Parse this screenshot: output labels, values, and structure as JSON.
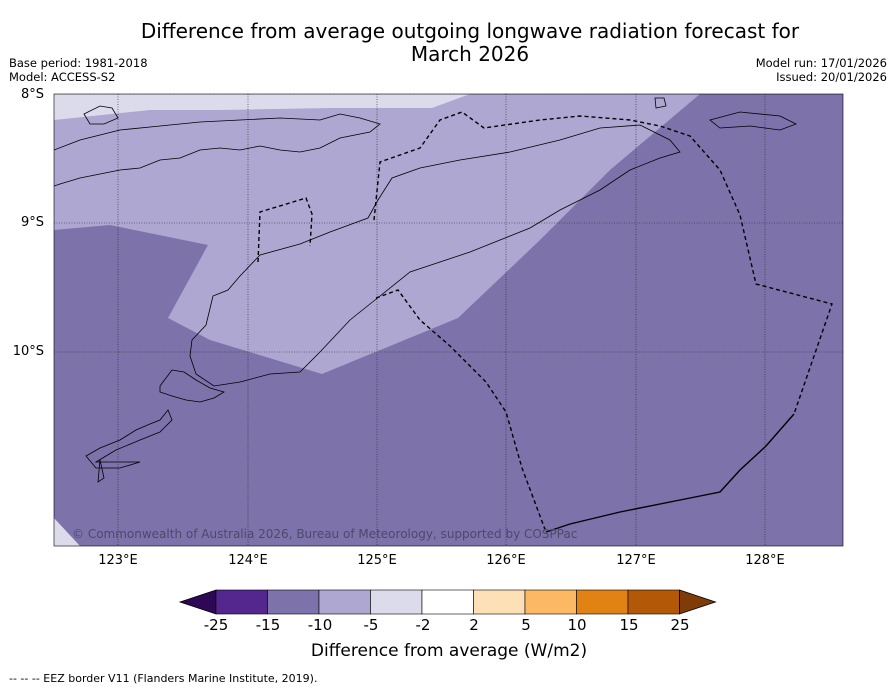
{
  "title_line1": "Difference from average outgoing longwave radiation forecast for",
  "title_line2": "March 2026",
  "meta": {
    "base_period": "Base period: 1981-2018",
    "model": "Model: ACCESS-S2",
    "model_run": "Model run: 17/01/2026",
    "issued": "Issued: 20/01/2026"
  },
  "lat_labels": [
    "8°S",
    "9°S",
    "10°S"
  ],
  "lon_labels": [
    "123°E",
    "124°E",
    "125°E",
    "126°E",
    "127°E",
    "128°E"
  ],
  "copyright": "© Commonwealth of Australia 2026, Bureau of Meteorology, supported by COSPPac",
  "colorbar": {
    "ticks": [
      "-25",
      "-15",
      "-10",
      "-5",
      "-2",
      "2",
      "5",
      "10",
      "15",
      "25"
    ],
    "colors": [
      "#2e0854",
      "#54278f",
      "#7e72ab",
      "#aea7d1",
      "#dcdbec",
      "#ffffff",
      "#fee0b6",
      "#fdb863",
      "#e08214",
      "#b35806",
      "#7f3b08"
    ],
    "label": "Difference from average (W/m2)"
  },
  "footnote": "--  --  -- EEZ border V11 (Flanders Marine Institute, 2019).",
  "map_colors": {
    "dark": "#7e72ab",
    "mid": "#aea7d1",
    "light": "#dcdbec"
  }
}
